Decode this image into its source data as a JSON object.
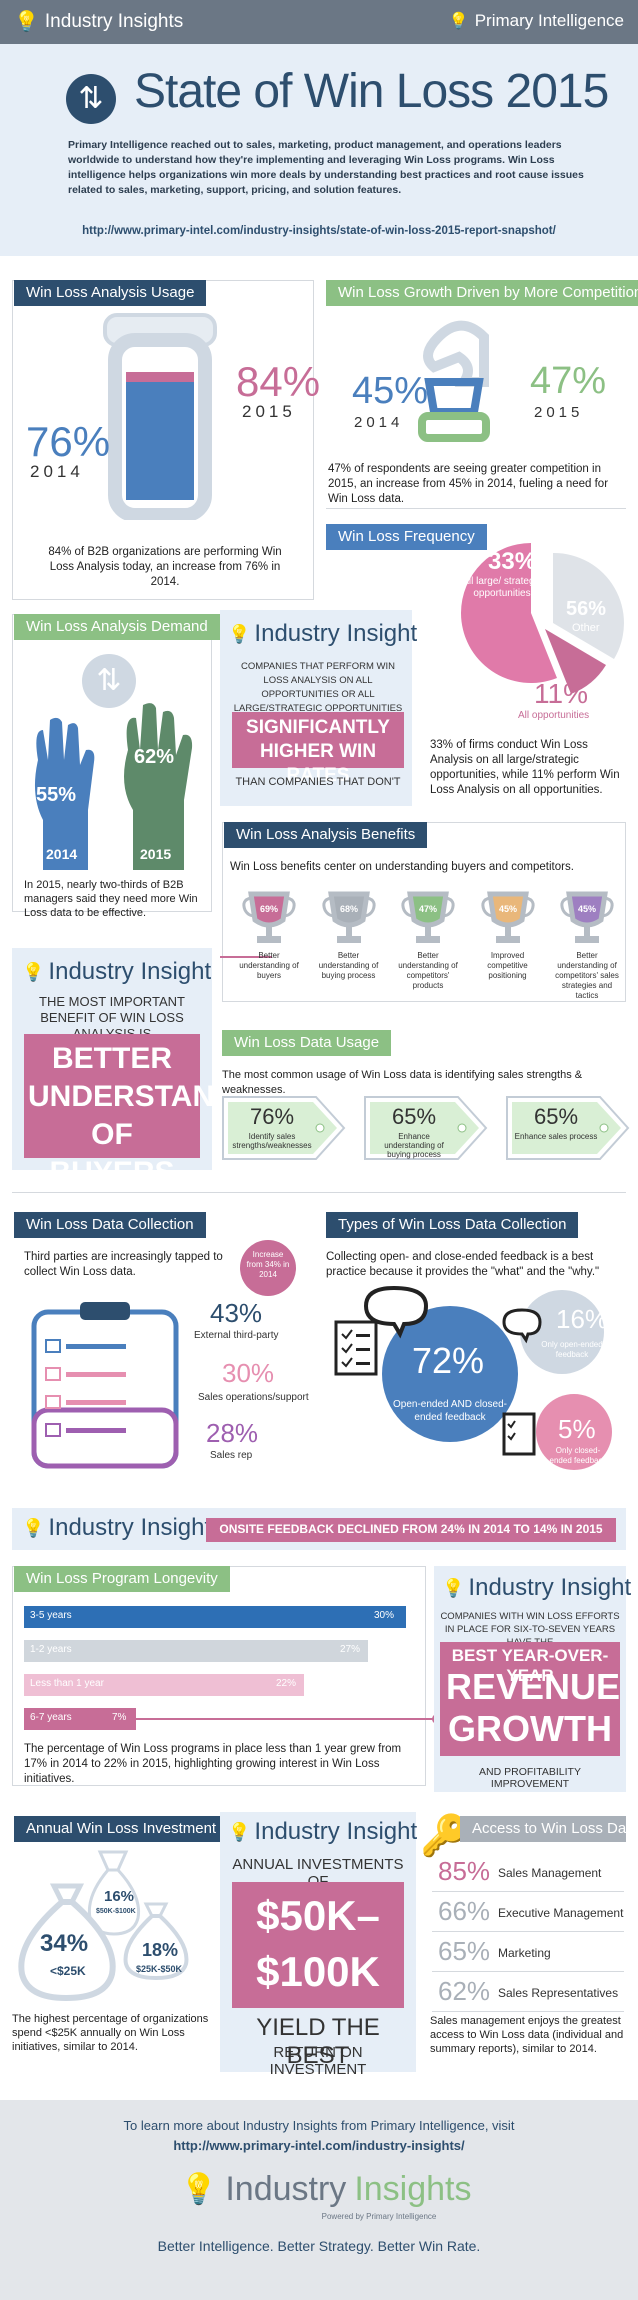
{
  "header": {
    "left_brand": "Industry Insights",
    "right_brand": "Primary Intelligence"
  },
  "hero": {
    "title": "State of Win Loss 2015",
    "intro": "Primary Intelligence reached out to sales, marketing, product management, and operations leaders worldwide to understand how they're implementing and leveraging Win Loss programs. Win Loss intelligence helps organizations win more deals by understanding best practices and root cause issues related to sales, marketing, support, pricing, and solution features.",
    "url": "http://www.primary-intel.com/industry-insights/state-of-win-loss-2015-report-snapshot/"
  },
  "usage": {
    "label": "Win Loss Analysis Usage",
    "v2015": "84%",
    "y2015": "2015",
    "v2014": "76%",
    "y2014": "2014",
    "note": "84% of B2B organizations are performing Win Loss Analysis today, an increase from 76% in 2014."
  },
  "growth": {
    "label": "Win Loss Growth Driven by More Competition",
    "v2014": "45%",
    "y2014": "2014",
    "v2015": "47%",
    "y2015": "2015",
    "note": "47% of respondents are seeing greater competition in 2015, an increase from 45% in 2014, fueling a need for Win Loss data."
  },
  "frequency": {
    "label": "Win Loss Frequency",
    "s1": "33%",
    "s1_label": "All large/ strategic opportunities",
    "s2": "56%",
    "s2_label": "Other",
    "s3": "11%",
    "s3_label": "All opportunities",
    "note": "33% of firms conduct Win Loss Analysis on all large/strategic opportunities, while 11% perform Win Loss Analysis on all opportunities."
  },
  "demand": {
    "label": "Win Loss Analysis Demand",
    "v2014": "55%",
    "y2014": "2014",
    "v2015": "62%",
    "y2015": "2015",
    "note": "In 2015, nearly two-thirds of B2B managers said they need more Win Loss data to be effective."
  },
  "insight1": {
    "title": "Industry Insight",
    "lead": "COMPANIES THAT PERFORM WIN LOSS ANALYSIS ON ALL OPPORTUNITIES OR ALL LARGE/STRATEGIC OPPORTUNITIES HAVE",
    "highlight": "SIGNIFICANTLY HIGHER WIN RATES",
    "tail": "THAN COMPANIES THAT DON'T"
  },
  "insight2": {
    "title": "Industry Insight",
    "lead": "THE MOST IMPORTANT BENEFIT OF WIN LOSS ANALYSIS IS",
    "highlight": "BETTER UNDERSTANDING OF BUYERS"
  },
  "benefits": {
    "label": "Win Loss Analysis Benefits",
    "intro": "Win Loss benefits center on understanding buyers and competitors.",
    "items": [
      {
        "v": "69%",
        "l": "Better understanding of buyers",
        "c": "#c76d97"
      },
      {
        "v": "68%",
        "l": "Better understanding of buying process",
        "c": "#a9b0b8"
      },
      {
        "v": "47%",
        "l": "Better understanding of competitors' products",
        "c": "#8cc084"
      },
      {
        "v": "45%",
        "l": "Improved competitive positioning",
        "c": "#e9b77a"
      },
      {
        "v": "45%",
        "l": "Better understanding of competitors' sales strategies and tactics",
        "c": "#9e7fc1"
      }
    ]
  },
  "datausage": {
    "label": "Win Loss Data Usage",
    "intro": "The most common usage of Win Loss data is identifying sales strengths & weaknesses.",
    "items": [
      {
        "v": "76%",
        "l": "Identify sales strengths/weaknesses"
      },
      {
        "v": "65%",
        "l": "Enhance understanding of buying process"
      },
      {
        "v": "65%",
        "l": "Enhance sales process"
      }
    ]
  },
  "collection": {
    "label": "Win Loss Data Collection",
    "intro": "Third parties are increasingly tapped to collect Win Loss data.",
    "bubble": "Increase from 34% in 2014",
    "items": [
      {
        "v": "43%",
        "l": "External third-party"
      },
      {
        "v": "30%",
        "l": "Sales operations/support"
      },
      {
        "v": "28%",
        "l": "Sales rep"
      }
    ]
  },
  "types": {
    "label": "Types of Win Loss Data Collection",
    "intro": "Collecting open- and close-ended feedback is a best practice because it provides the \"what\" and the \"why.\"",
    "c1": "72%",
    "c1_label": "Open-ended AND closed-ended feedback",
    "c2": "16%",
    "c2_label": "Only open-ended feedback",
    "c3": "5%",
    "c3_label": "Only closed-ended feedback"
  },
  "insight3": {
    "title": "Industry Insight",
    "banner": "ONSITE FEEDBACK DECLINED FROM 24% IN 2014 TO 14% IN 2015"
  },
  "longevity": {
    "label": "Win Loss Program Longevity",
    "bars": [
      {
        "l": "3-5 years",
        "v": "30%"
      },
      {
        "l": "1-2 years",
        "v": "27%"
      },
      {
        "l": "Less than 1 year",
        "v": "22%"
      },
      {
        "l": "6-7 years",
        "v": "7%"
      }
    ],
    "note": "The percentage of Win Loss programs in place less than 1 year grew from 17% in 2014 to 22% in 2015, highlighting growing interest in Win Loss initiatives."
  },
  "insight4": {
    "title": "Industry Insight",
    "lead": "COMPANIES WITH WIN LOSS EFFORTS IN PLACE FOR SIX-TO-SEVEN YEARS HAVE THE",
    "highlight1": "BEST YEAR-OVER-YEAR",
    "highlight2": "REVENUE GROWTH",
    "tail": "AND PROFITABILITY IMPROVEMENT"
  },
  "investment": {
    "label": "Annual Win Loss Investment",
    "b1": "34%",
    "b1_l": "<$25K",
    "b2": "16%",
    "b2_l": "$50K-$100K",
    "b3": "18%",
    "b3_l": "$25K-$50K",
    "note": "The highest percentage of organizations spend <$25K annually on Win Loss initiatives, similar to 2014."
  },
  "insight5": {
    "title": "Industry Insight",
    "lead": "ANNUAL INVESTMENTS OF",
    "highlight": "$50K– $100K",
    "tail1": "YIELD THE BEST",
    "tail2": "RETURN ON INVESTMENT"
  },
  "access": {
    "label": "Access to Win Loss Data",
    "items": [
      {
        "v": "85%",
        "l": "Sales Management"
      },
      {
        "v": "66%",
        "l": "Executive Management"
      },
      {
        "v": "65%",
        "l": "Marketing"
      },
      {
        "v": "62%",
        "l": "Sales Representatives"
      }
    ],
    "note": "Sales management enjoys the greatest access to Win Loss data (individual and summary reports), similar to 2014."
  },
  "footer": {
    "line1": "To learn more about Industry Insights from Primary Intelligence, visit",
    "url": "http://www.primary-intel.com/industry-insights/",
    "brand1": "Industry",
    "brand2": "Insights",
    "powered": "Powered by Primary Intelligence",
    "tagline": "Better Intelligence. Better Strategy. Better Win Rate."
  },
  "colors": {
    "navy": "#2d4e6e",
    "blue": "#4a7fbd",
    "pink": "#c76d97",
    "green": "#8cc084",
    "grey": "#a9b0b8",
    "light": "#e6eef7"
  }
}
